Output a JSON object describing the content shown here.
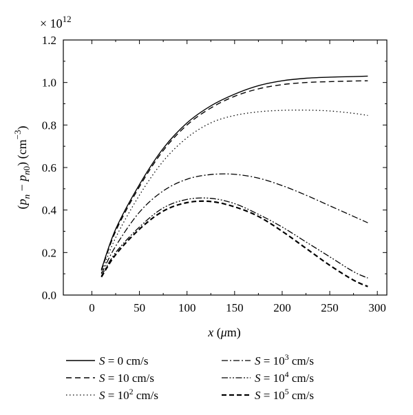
{
  "chart_data": {
    "type": "line",
    "title": "",
    "xlabel": "x (μm)",
    "ylabel": "(p_n − p_n0) (cm^−3)",
    "y_multiplier": "× 10",
    "y_multiplier_exp": "12",
    "xlim": [
      -30,
      310
    ],
    "ylim": [
      0,
      1.2
    ],
    "xticks": [
      0,
      50,
      100,
      150,
      200,
      250,
      300
    ],
    "xtick_labels": [
      "0",
      "50",
      "100",
      "150",
      "200",
      "250",
      "300"
    ],
    "yticks": [
      0,
      0.2,
      0.4,
      0.6,
      0.8,
      1.0,
      1.2
    ],
    "ytick_labels": [
      "0.0",
      "0.2",
      "0.4",
      "0.6",
      "0.8",
      "1.0",
      "1.2"
    ],
    "grid": false,
    "legend_position": "bottom",
    "x": [
      10,
      25,
      50,
      75,
      100,
      125,
      150,
      175,
      200,
      225,
      250,
      275,
      290
    ],
    "series": [
      {
        "name": "S = 0 cm/s",
        "label_pre": "S",
        "label_base": " = 0 cm/s",
        "label_sup": "",
        "label_post": "",
        "dash": "",
        "width": 1.4,
        "values": [
          0.12,
          0.31,
          0.52,
          0.69,
          0.81,
          0.89,
          0.945,
          0.985,
          1.008,
          1.02,
          1.025,
          1.028,
          1.03
        ]
      },
      {
        "name": "S = 10 cm/s",
        "label_pre": "S",
        "label_base": " = 10 cm/s",
        "label_sup": "",
        "label_post": "",
        "dash": "8,5",
        "width": 1.4,
        "values": [
          0.115,
          0.3,
          0.51,
          0.68,
          0.8,
          0.88,
          0.935,
          0.97,
          0.99,
          1.0,
          1.004,
          1.007,
          1.008
        ]
      },
      {
        "name": "S = 10^2 cm/s",
        "label_pre": "S",
        "label_base": " = 10",
        "label_sup": "2",
        "label_post": " cm/s",
        "dash": "1.5,3.5",
        "width": 1.3,
        "values": [
          0.105,
          0.27,
          0.47,
          0.63,
          0.74,
          0.81,
          0.845,
          0.862,
          0.869,
          0.87,
          0.866,
          0.855,
          0.845
        ]
      },
      {
        "name": "S = 10^3 cm/s",
        "label_pre": "S",
        "label_base": " = 10",
        "label_sup": "3",
        "label_post": " cm/s",
        "dash": "9,3,2,3",
        "width": 1.3,
        "values": [
          0.1,
          0.23,
          0.39,
          0.49,
          0.545,
          0.567,
          0.568,
          0.55,
          0.515,
          0.47,
          0.42,
          0.37,
          0.34
        ]
      },
      {
        "name": "S = 10^4 cm/s",
        "label_pre": "S",
        "label_base": " = 10",
        "label_sup": "4",
        "label_post": " cm/s",
        "dash": "9,2.5,2,2.5,2,2.5",
        "width": 1.3,
        "values": [
          0.09,
          0.2,
          0.32,
          0.41,
          0.45,
          0.455,
          0.43,
          0.38,
          0.32,
          0.25,
          0.18,
          0.11,
          0.08
        ]
      },
      {
        "name": "S = 10^5 cm/s",
        "label_pre": "S",
        "label_base": " = 10",
        "label_sup": "5",
        "label_post": " cm/s",
        "dash": "7,4",
        "width": 2.2,
        "values": [
          0.085,
          0.19,
          0.31,
          0.395,
          0.435,
          0.44,
          0.415,
          0.37,
          0.3,
          0.22,
          0.14,
          0.07,
          0.04
        ]
      }
    ]
  }
}
